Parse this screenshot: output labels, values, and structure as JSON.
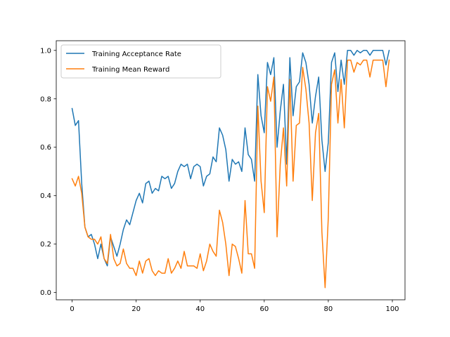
{
  "chart_data": {
    "type": "line",
    "title": "",
    "xlabel": "",
    "ylabel": "",
    "xlim": [
      -4.95,
      103.95
    ],
    "ylim": [
      -0.03,
      1.04
    ],
    "xticks": [
      0,
      20,
      40,
      60,
      80,
      100
    ],
    "yticks": [
      0.0,
      0.2,
      0.4,
      0.6,
      0.8,
      1.0
    ],
    "xtick_labels": [
      "0",
      "20",
      "40",
      "60",
      "80",
      "100"
    ],
    "ytick_labels": [
      "0.0",
      "0.2",
      "0.4",
      "0.6",
      "0.8",
      "1.0"
    ],
    "grid": false,
    "legend_position": "top-left",
    "series": [
      {
        "name": "Training Acceptance Rate",
        "color": "#1f77b4",
        "x": [
          0,
          1,
          2,
          3,
          4,
          5,
          6,
          7,
          8,
          9,
          10,
          11,
          12,
          13,
          14,
          15,
          16,
          17,
          18,
          19,
          20,
          21,
          22,
          23,
          24,
          25,
          26,
          27,
          28,
          29,
          30,
          31,
          32,
          33,
          34,
          35,
          36,
          37,
          38,
          39,
          40,
          41,
          42,
          43,
          44,
          45,
          46,
          47,
          48,
          49,
          50,
          51,
          52,
          53,
          54,
          55,
          56,
          57,
          58,
          59,
          60,
          61,
          62,
          63,
          64,
          65,
          66,
          67,
          68,
          69,
          70,
          71,
          72,
          73,
          74,
          75,
          76,
          77,
          78,
          79,
          80,
          81,
          82,
          83,
          84,
          85,
          86,
          87,
          88,
          89,
          90,
          91,
          92,
          93,
          94,
          95,
          96,
          97,
          98,
          99
        ],
        "values": [
          0.76,
          0.69,
          0.71,
          0.45,
          0.27,
          0.23,
          0.24,
          0.2,
          0.14,
          0.2,
          0.14,
          0.11,
          0.23,
          0.19,
          0.15,
          0.2,
          0.26,
          0.3,
          0.28,
          0.33,
          0.38,
          0.41,
          0.37,
          0.45,
          0.46,
          0.41,
          0.43,
          0.42,
          0.48,
          0.47,
          0.48,
          0.43,
          0.45,
          0.5,
          0.53,
          0.52,
          0.53,
          0.47,
          0.52,
          0.53,
          0.52,
          0.44,
          0.48,
          0.49,
          0.56,
          0.54,
          0.68,
          0.65,
          0.59,
          0.46,
          0.55,
          0.53,
          0.54,
          0.5,
          0.68,
          0.57,
          0.55,
          0.46,
          0.9,
          0.73,
          0.66,
          0.95,
          0.9,
          0.97,
          0.6,
          0.75,
          0.86,
          0.53,
          0.97,
          0.73,
          0.85,
          0.87,
          0.99,
          0.95,
          0.86,
          0.7,
          0.81,
          0.89,
          0.63,
          0.5,
          0.62,
          0.95,
          0.99,
          0.83,
          0.96,
          0.86,
          1.0,
          1.0,
          0.98,
          1.0,
          0.99,
          1.0,
          1.0,
          0.98,
          1.0,
          1.0,
          1.0,
          1.0,
          0.94,
          1.0
        ]
      },
      {
        "name": "Training Mean Reward",
        "color": "#ff7f0e",
        "x": [
          0,
          1,
          2,
          3,
          4,
          5,
          6,
          7,
          8,
          9,
          10,
          11,
          12,
          13,
          14,
          15,
          16,
          17,
          18,
          19,
          20,
          21,
          22,
          23,
          24,
          25,
          26,
          27,
          28,
          29,
          30,
          31,
          32,
          33,
          34,
          35,
          36,
          37,
          38,
          39,
          40,
          41,
          42,
          43,
          44,
          45,
          46,
          47,
          48,
          49,
          50,
          51,
          52,
          53,
          54,
          55,
          56,
          57,
          58,
          59,
          60,
          61,
          62,
          63,
          64,
          65,
          66,
          67,
          68,
          69,
          70,
          71,
          72,
          73,
          74,
          75,
          76,
          77,
          78,
          79,
          80,
          81,
          82,
          83,
          84,
          85,
          86,
          87,
          88,
          89,
          90,
          91,
          92,
          93,
          94,
          95,
          96,
          97,
          98,
          99
        ],
        "values": [
          0.47,
          0.44,
          0.48,
          0.41,
          0.27,
          0.23,
          0.22,
          0.22,
          0.2,
          0.23,
          0.14,
          0.12,
          0.24,
          0.14,
          0.11,
          0.12,
          0.18,
          0.12,
          0.1,
          0.1,
          0.07,
          0.13,
          0.08,
          0.13,
          0.14,
          0.09,
          0.07,
          0.09,
          0.08,
          0.08,
          0.14,
          0.08,
          0.1,
          0.13,
          0.1,
          0.17,
          0.11,
          0.11,
          0.11,
          0.1,
          0.16,
          0.09,
          0.13,
          0.2,
          0.17,
          0.15,
          0.34,
          0.29,
          0.2,
          0.07,
          0.2,
          0.19,
          0.14,
          0.08,
          0.38,
          0.16,
          0.16,
          0.1,
          0.77,
          0.46,
          0.33,
          0.85,
          0.79,
          0.89,
          0.23,
          0.53,
          0.68,
          0.44,
          0.88,
          0.46,
          0.69,
          0.7,
          0.93,
          0.84,
          0.7,
          0.38,
          0.66,
          0.74,
          0.25,
          0.02,
          0.31,
          0.86,
          0.92,
          0.7,
          0.88,
          0.68,
          0.96,
          0.96,
          0.91,
          0.95,
          0.94,
          0.96,
          0.96,
          0.89,
          0.96,
          0.96,
          0.96,
          0.96,
          0.85,
          0.96
        ]
      }
    ]
  }
}
